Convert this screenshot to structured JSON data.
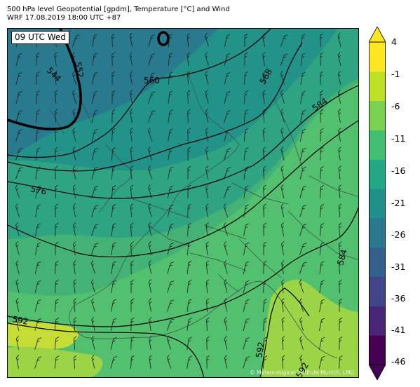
{
  "header": {
    "line1": "500 hPa level Geopotential [gpdm], Temperature [°C] and Wind",
    "line2": "WRF 17.08.2019 18:00 UTC +87"
  },
  "time_label": "09 UTC Wed",
  "credit": "© Meteorological Institute Munich, LMU",
  "colorbar": {
    "ticks": [
      "4",
      "-1",
      "-6",
      "-11",
      "-16",
      "-21",
      "-26",
      "-31",
      "-36",
      "-41",
      "-46"
    ],
    "colors": [
      "#440154",
      "#482575",
      "#414487",
      "#35608d",
      "#2a788e",
      "#21908d",
      "#22a884",
      "#42be71",
      "#7ad151",
      "#bddf26",
      "#fde725"
    ],
    "extend": "both"
  },
  "contour_labels": [
    "544",
    "552",
    "560",
    "568",
    "576",
    "584",
    "584",
    "592",
    "592",
    "592"
  ]
}
